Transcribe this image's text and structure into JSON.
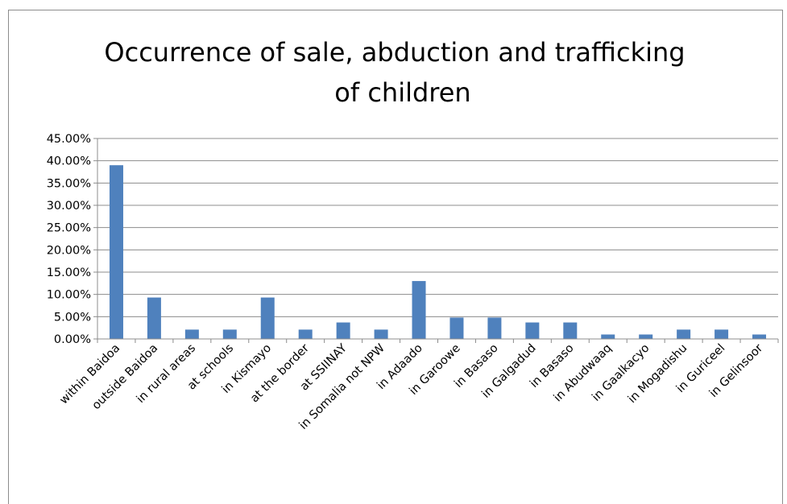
{
  "chart_data": {
    "type": "bar",
    "title_lines": [
      "Occurrence of sale, abduction and trafficking",
      "of children"
    ],
    "categories": [
      "within Baidoa",
      "outside Baidoa",
      "in rural areas",
      "at schools",
      "in Kismayo",
      "at the border",
      "at SSIINAY",
      "in Somalia not NPW",
      "in Adaado",
      "in Garoowe",
      "in Basaso",
      "in Galgadud",
      "in Basaso",
      "in Abudwaaq",
      "in Gaalkacyo",
      "in Mogadishu",
      "in Guriceel",
      "in Gelinsoor"
    ],
    "values": [
      0.39,
      0.093,
      0.021,
      0.021,
      0.093,
      0.021,
      0.037,
      0.021,
      0.13,
      0.048,
      0.048,
      0.037,
      0.037,
      0.01,
      0.01,
      0.021,
      0.021,
      0.01
    ],
    "yticks": [
      "0.00%",
      "5.00%",
      "10.00%",
      "15.00%",
      "20.00%",
      "25.00%",
      "30.00%",
      "35.00%",
      "40.00%",
      "45.00%"
    ],
    "ylim": [
      0,
      0.45
    ],
    "grid": true,
    "bar_color": "#4f81bd"
  }
}
